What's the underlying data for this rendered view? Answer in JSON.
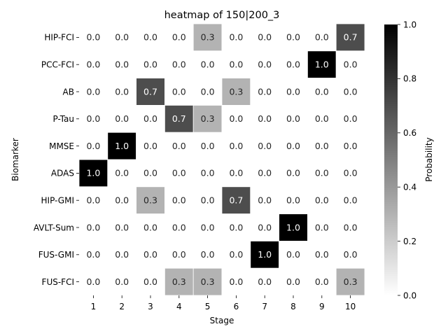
{
  "chart_data": {
    "type": "heatmap",
    "title": "heatmap of 150|200_3",
    "xlabel": "Stage",
    "ylabel": "Biomarker",
    "x_categories": [
      "1",
      "2",
      "3",
      "4",
      "5",
      "6",
      "7",
      "8",
      "9",
      "10"
    ],
    "y_categories": [
      "HIP-FCI",
      "PCC-FCI",
      "AB",
      "P-Tau",
      "MMSE",
      "ADAS",
      "HIP-GMI",
      "AVLT-Sum",
      "FUS-GMI",
      "FUS-FCI"
    ],
    "values": [
      [
        0.0,
        0.0,
        0.0,
        0.0,
        0.3,
        0.0,
        0.0,
        0.0,
        0.0,
        0.7
      ],
      [
        0.0,
        0.0,
        0.0,
        0.0,
        0.0,
        0.0,
        0.0,
        0.0,
        1.0,
        0.0
      ],
      [
        0.0,
        0.0,
        0.7,
        0.0,
        0.0,
        0.3,
        0.0,
        0.0,
        0.0,
        0.0
      ],
      [
        0.0,
        0.0,
        0.0,
        0.7,
        0.3,
        0.0,
        0.0,
        0.0,
        0.0,
        0.0
      ],
      [
        0.0,
        1.0,
        0.0,
        0.0,
        0.0,
        0.0,
        0.0,
        0.0,
        0.0,
        0.0
      ],
      [
        1.0,
        0.0,
        0.0,
        0.0,
        0.0,
        0.0,
        0.0,
        0.0,
        0.0,
        0.0
      ],
      [
        0.0,
        0.0,
        0.3,
        0.0,
        0.0,
        0.7,
        0.0,
        0.0,
        0.0,
        0.0
      ],
      [
        0.0,
        0.0,
        0.0,
        0.0,
        0.0,
        0.0,
        0.0,
        1.0,
        0.0,
        0.0
      ],
      [
        0.0,
        0.0,
        0.0,
        0.0,
        0.0,
        0.0,
        1.0,
        0.0,
        0.0,
        0.0
      ],
      [
        0.0,
        0.0,
        0.0,
        0.3,
        0.3,
        0.0,
        0.0,
        0.0,
        0.0,
        0.3
      ]
    ],
    "colorbar": {
      "label": "Probability",
      "range": [
        0.0,
        1.0
      ],
      "ticks": [
        "0.0",
        "0.2",
        "0.4",
        "0.6",
        "0.8",
        "1.0"
      ],
      "colormap": "Greys"
    },
    "colors": {
      "low": "#ffffff",
      "high": "#000000",
      "text_on_dark": "#ffffff",
      "text_on_light": "#262626"
    },
    "grid": false,
    "cell_annotations": true
  }
}
